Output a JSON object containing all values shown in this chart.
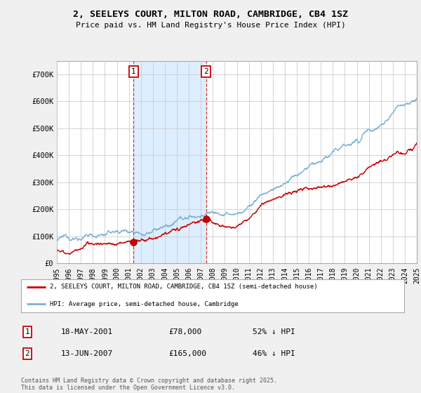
{
  "title": "2, SEELEYS COURT, MILTON ROAD, CAMBRIDGE, CB4 1SZ",
  "subtitle": "Price paid vs. HM Land Registry's House Price Index (HPI)",
  "bg_color": "#f0f0f0",
  "plot_bg_color": "#ffffff",
  "y_ticks": [
    0,
    100000,
    200000,
    300000,
    400000,
    500000,
    600000,
    700000
  ],
  "y_tick_labels": [
    "£0",
    "£100K",
    "£200K",
    "£300K",
    "£400K",
    "£500K",
    "£600K",
    "£700K"
  ],
  "x_start_year": 1995,
  "x_end_year": 2025,
  "purchase1": {
    "date_label": "18-MAY-2001",
    "price_label": "£78,000",
    "price": 78000,
    "hpi_pct": "52% ↓ HPI",
    "marker_num": 1,
    "year": 2001.38
  },
  "purchase2": {
    "date_label": "13-JUN-2007",
    "price_label": "£165,000",
    "price": 165000,
    "hpi_pct": "46% ↓ HPI",
    "marker_num": 2,
    "year": 2007.45
  },
  "legend_line1": "2, SEELEYS COURT, MILTON ROAD, CAMBRIDGE, CB4 1SZ (semi-detached house)",
  "legend_line2": "HPI: Average price, semi-detached house, Cambridge",
  "footer": "Contains HM Land Registry data © Crown copyright and database right 2025.\nThis data is licensed under the Open Government Licence v3.0.",
  "red_color": "#cc0000",
  "blue_color": "#7ab0d4",
  "shade_color": "#ddeeff",
  "grid_color": "#cccccc",
  "ylim_max": 750000
}
